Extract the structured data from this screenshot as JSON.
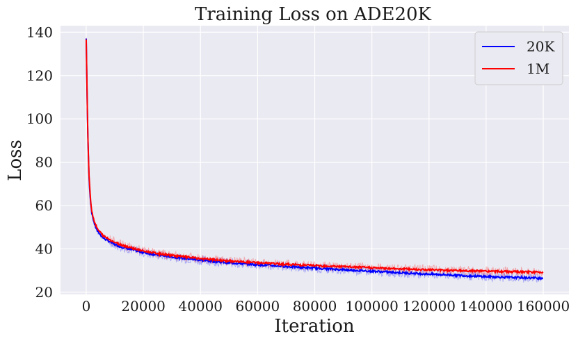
{
  "chart_data": {
    "type": "line",
    "title": "Training Loss on ADE20K",
    "xlabel": "Iteration",
    "ylabel": "Loss",
    "xlim": [
      -9000,
      169000
    ],
    "ylim": [
      19,
      143
    ],
    "xticks": [
      0,
      20000,
      40000,
      60000,
      80000,
      100000,
      120000,
      140000,
      160000
    ],
    "yticks": [
      20,
      40,
      60,
      80,
      100,
      120,
      140
    ],
    "grid": true,
    "legend": "top-right",
    "background": "#eaeaf2",
    "series": [
      {
        "name": "20K",
        "color": "#0000ff",
        "x": [
          0,
          500,
          1000,
          1500,
          2000,
          3000,
          4000,
          5000,
          6000,
          8000,
          10000,
          12000,
          15000,
          20000,
          25000,
          30000,
          40000,
          50000,
          60000,
          70000,
          80000,
          90000,
          100000,
          110000,
          120000,
          130000,
          140000,
          150000,
          160000
        ],
        "y": [
          137,
          95,
          72,
          62,
          56,
          51,
          48,
          46.5,
          45,
          43.5,
          42,
          41,
          40,
          38.3,
          37.2,
          36.3,
          34.8,
          33.6,
          32.7,
          31.9,
          31.1,
          30.4,
          29.7,
          29,
          28.4,
          27.8,
          27.2,
          26.8,
          26.5
        ]
      },
      {
        "name": "1M",
        "color": "#ff0000",
        "x": [
          0,
          500,
          1000,
          1500,
          2000,
          3000,
          4000,
          5000,
          6000,
          8000,
          10000,
          12000,
          15000,
          20000,
          25000,
          30000,
          40000,
          50000,
          60000,
          70000,
          80000,
          90000,
          100000,
          110000,
          120000,
          130000,
          140000,
          150000,
          160000
        ],
        "y": [
          137,
          96,
          73,
          63,
          57,
          52,
          49,
          47.5,
          46,
          44.5,
          43,
          42,
          40.8,
          39,
          37.9,
          37,
          35.5,
          34.4,
          33.6,
          32.9,
          32.3,
          31.8,
          31.3,
          30.8,
          30.4,
          30,
          29.7,
          29.4,
          29.2
        ]
      }
    ]
  }
}
